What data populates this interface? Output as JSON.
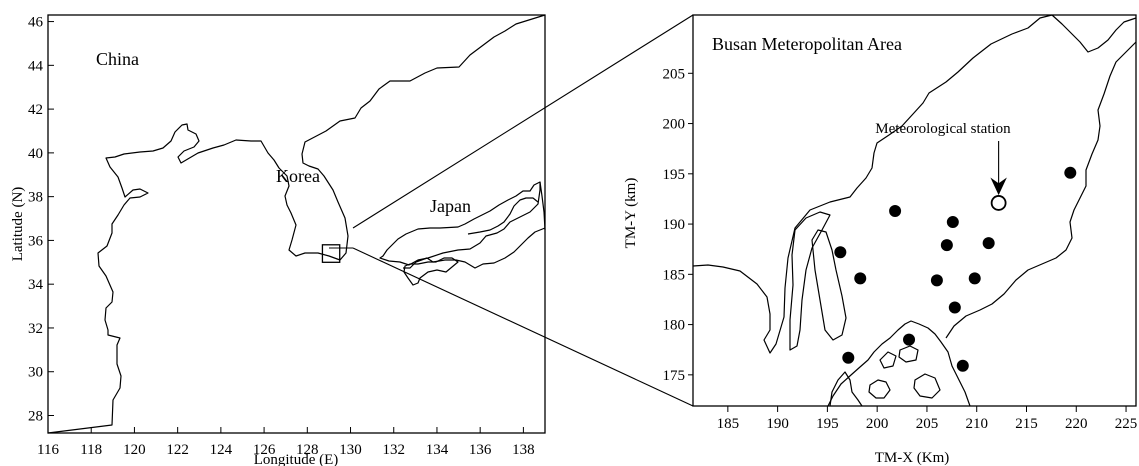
{
  "left_map": {
    "ylabel": "Latitude (N)",
    "xlabel": "Longitude (E)",
    "x_ticks": [
      "116",
      "118",
      "120",
      "122",
      "124",
      "126",
      "128",
      "130",
      "132",
      "134",
      "136",
      "138"
    ],
    "y_ticks": [
      "28",
      "30",
      "32",
      "34",
      "36",
      "38",
      "40",
      "42",
      "44",
      "46"
    ],
    "region_labels": {
      "china": "China",
      "korea": "Korea",
      "japan": "Japan"
    },
    "study_box_extent": {
      "lon": [
        128.7,
        129.5
      ],
      "lat": [
        35.0,
        35.8
      ]
    }
  },
  "right_map": {
    "title": "Busan Meteropolitan Area",
    "ylabel": "TM-Y (km)",
    "xlabel": "TM-X (Km)",
    "x_ticks": [
      "185",
      "190",
      "195",
      "200",
      "205",
      "210",
      "215",
      "220",
      "225"
    ],
    "y_ticks": [
      "175",
      "180",
      "185",
      "190",
      "195",
      "200",
      "205"
    ],
    "station_label": "Meteorological station",
    "meteorological_station": {
      "tm_x": 212.2,
      "tm_y": 192.1
    },
    "monitoring_sites": [
      {
        "tm_x": 196.3,
        "tm_y": 187.2
      },
      {
        "tm_x": 198.3,
        "tm_y": 184.6
      },
      {
        "tm_x": 201.8,
        "tm_y": 191.3
      },
      {
        "tm_x": 207.0,
        "tm_y": 187.9
      },
      {
        "tm_x": 207.6,
        "tm_y": 190.2
      },
      {
        "tm_x": 211.2,
        "tm_y": 188.1
      },
      {
        "tm_x": 206.0,
        "tm_y": 184.4
      },
      {
        "tm_x": 209.8,
        "tm_y": 184.6
      },
      {
        "tm_x": 207.8,
        "tm_y": 181.7
      },
      {
        "tm_x": 219.4,
        "tm_y": 195.1
      },
      {
        "tm_x": 197.1,
        "tm_y": 176.7
      },
      {
        "tm_x": 203.2,
        "tm_y": 178.5
      },
      {
        "tm_x": 208.6,
        "tm_y": 175.9
      }
    ]
  }
}
